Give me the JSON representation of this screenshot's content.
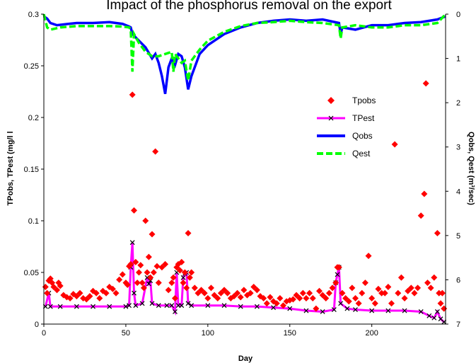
{
  "chart_data": {
    "type": "line",
    "title": "Impact of the phosphorus removal on the export",
    "xlabel": "Day",
    "ylabel_left": "TPobs, TPest (mg/l l",
    "ylabel_right": "Qobs, Qest (m³/sec)",
    "xlim": [
      0,
      245
    ],
    "ylim_left": [
      0,
      0.3
    ],
    "ylim_right_inverted": [
      0,
      7
    ],
    "x_ticks": [
      "0",
      "50",
      "100",
      "150",
      "200"
    ],
    "y_left_ticks": [
      "0",
      "0.05",
      "0.1",
      "0.15",
      "0.2",
      "0.25",
      "0.3"
    ],
    "y_right_ticks": [
      "0",
      "1",
      "2",
      "3",
      "4",
      "5",
      "6",
      "7"
    ],
    "legend_position": "upper-right",
    "colors": {
      "Tpobs": "#ff0000",
      "TPest": "#ff00ff",
      "Qobs": "#0000ff",
      "Qest": "#00ff00",
      "marker": "#000000"
    },
    "series": [
      {
        "name": "Tpobs",
        "axis": "left",
        "style": "diamond-markers",
        "points": [
          [
            1,
            0.036
          ],
          [
            2,
            0.03
          ],
          [
            3,
            0.042
          ],
          [
            4,
            0.044
          ],
          [
            5,
            0.04
          ],
          [
            6,
            0.036
          ],
          [
            8,
            0.033
          ],
          [
            9,
            0.04
          ],
          [
            10,
            0.037
          ],
          [
            12,
            0.028
          ],
          [
            14,
            0.026
          ],
          [
            16,
            0.025
          ],
          [
            18,
            0.029
          ],
          [
            20,
            0.027
          ],
          [
            22,
            0.03
          ],
          [
            24,
            0.025
          ],
          [
            26,
            0.024
          ],
          [
            28,
            0.027
          ],
          [
            30,
            0.032
          ],
          [
            32,
            0.03
          ],
          [
            34,
            0.025
          ],
          [
            36,
            0.032
          ],
          [
            38,
            0.03
          ],
          [
            40,
            0.036
          ],
          [
            42,
            0.034
          ],
          [
            44,
            0.03
          ],
          [
            46,
            0.043
          ],
          [
            48,
            0.048
          ],
          [
            50,
            0.04
          ],
          [
            51,
            0.038
          ],
          [
            52,
            0.056
          ],
          [
            53,
            0.058
          ],
          [
            54,
            0.222
          ],
          [
            55,
            0.11
          ],
          [
            56,
            0.06
          ],
          [
            57,
            0.04
          ],
          [
            58,
            0.05
          ],
          [
            59,
            0.057
          ],
          [
            60,
            0.04
          ],
          [
            61,
            0.035
          ],
          [
            62,
            0.1
          ],
          [
            63,
            0.05
          ],
          [
            64,
            0.065
          ],
          [
            65,
            0.045
          ],
          [
            66,
            0.087
          ],
          [
            67,
            0.05
          ],
          [
            68,
            0.167
          ],
          [
            69,
            0.056
          ],
          [
            70,
            0.04
          ],
          [
            72,
            0.055
          ],
          [
            74,
            0.058
          ],
          [
            76,
            0.033
          ],
          [
            78,
            0.04
          ],
          [
            79,
            0.045
          ],
          [
            80,
            0.025
          ],
          [
            81,
            0.055
          ],
          [
            82,
            0.058
          ],
          [
            83,
            0.052
          ],
          [
            84,
            0.06
          ],
          [
            85,
            0.04
          ],
          [
            86,
            0.05
          ],
          [
            87,
            0.035
          ],
          [
            88,
            0.088
          ],
          [
            89,
            0.045
          ],
          [
            90,
            0.05
          ],
          [
            92,
            0.035
          ],
          [
            94,
            0.03
          ],
          [
            96,
            0.033
          ],
          [
            98,
            0.03
          ],
          [
            100,
            0.025
          ],
          [
            102,
            0.035
          ],
          [
            104,
            0.028
          ],
          [
            106,
            0.025
          ],
          [
            108,
            0.03
          ],
          [
            110,
            0.033
          ],
          [
            112,
            0.03
          ],
          [
            114,
            0.025
          ],
          [
            116,
            0.027
          ],
          [
            118,
            0.03
          ],
          [
            120,
            0.026
          ],
          [
            122,
            0.033
          ],
          [
            124,
            0.028
          ],
          [
            126,
            0.03
          ],
          [
            128,
            0.036
          ],
          [
            130,
            0.033
          ],
          [
            132,
            0.027
          ],
          [
            134,
            0.025
          ],
          [
            136,
            0.02
          ],
          [
            138,
            0.026
          ],
          [
            140,
            0.022
          ],
          [
            142,
            0.02
          ],
          [
            144,
            0.025
          ],
          [
            146,
            0.018
          ],
          [
            148,
            0.022
          ],
          [
            150,
            0.023
          ],
          [
            152,
            0.024
          ],
          [
            154,
            0.028
          ],
          [
            156,
            0.025
          ],
          [
            158,
            0.03
          ],
          [
            160,
            0.025
          ],
          [
            162,
            0.03
          ],
          [
            164,
            0.025
          ],
          [
            166,
            0.015
          ],
          [
            168,
            0.032
          ],
          [
            170,
            0.028
          ],
          [
            172,
            0.025
          ],
          [
            174,
            0.03
          ],
          [
            176,
            0.035
          ],
          [
            178,
            0.04
          ],
          [
            179,
            0.055
          ],
          [
            180,
            0.055
          ],
          [
            182,
            0.03
          ],
          [
            184,
            0.025
          ],
          [
            186,
            0.022
          ],
          [
            188,
            0.035
          ],
          [
            190,
            0.025
          ],
          [
            192,
            0.02
          ],
          [
            194,
            0.03
          ],
          [
            196,
            0.04
          ],
          [
            198,
            0.066
          ],
          [
            200,
            0.025
          ],
          [
            202,
            0.02
          ],
          [
            204,
            0.034
          ],
          [
            206,
            0.03
          ],
          [
            208,
            0.03
          ],
          [
            210,
            0.036
          ],
          [
            212,
            0.02
          ],
          [
            214,
            0.174
          ],
          [
            216,
            0.03
          ],
          [
            218,
            0.045
          ],
          [
            220,
            0.025
          ],
          [
            222,
            0.032
          ],
          [
            224,
            0.035
          ],
          [
            226,
            0.03
          ],
          [
            228,
            0.035
          ],
          [
            230,
            0.105
          ],
          [
            232,
            0.126
          ],
          [
            233,
            0.233
          ],
          [
            234,
            0.04
          ],
          [
            236,
            0.035
          ],
          [
            238,
            0.045
          ],
          [
            240,
            0.088
          ],
          [
            241,
            0.03
          ],
          [
            242,
            0.02
          ],
          [
            243,
            0.03
          ],
          [
            244,
            0.015
          ]
        ]
      },
      {
        "name": "TPest",
        "axis": "left",
        "style": "line-with-x-markers",
        "points": [
          [
            1,
            0.017
          ],
          [
            3,
            0.03
          ],
          [
            4,
            0.017
          ],
          [
            10,
            0.017
          ],
          [
            20,
            0.017
          ],
          [
            30,
            0.017
          ],
          [
            40,
            0.017
          ],
          [
            50,
            0.017
          ],
          [
            52,
            0.018
          ],
          [
            53,
            0.055
          ],
          [
            54,
            0.079
          ],
          [
            55,
            0.03
          ],
          [
            56,
            0.018
          ],
          [
            60,
            0.02
          ],
          [
            63,
            0.045
          ],
          [
            64,
            0.039
          ],
          [
            65,
            0.042
          ],
          [
            66,
            0.02
          ],
          [
            70,
            0.018
          ],
          [
            75,
            0.018
          ],
          [
            78,
            0.018
          ],
          [
            80,
            0.012
          ],
          [
            81,
            0.05
          ],
          [
            82,
            0.018
          ],
          [
            84,
            0.018
          ],
          [
            85,
            0.045
          ],
          [
            86,
            0.049
          ],
          [
            87,
            0.05
          ],
          [
            88,
            0.02
          ],
          [
            90,
            0.018
          ],
          [
            100,
            0.018
          ],
          [
            110,
            0.018
          ],
          [
            120,
            0.017
          ],
          [
            130,
            0.017
          ],
          [
            140,
            0.016
          ],
          [
            150,
            0.015
          ],
          [
            160,
            0.013
          ],
          [
            170,
            0.012
          ],
          [
            177,
            0.014
          ],
          [
            178,
            0.04
          ],
          [
            179,
            0.048
          ],
          [
            180,
            0.055
          ],
          [
            181,
            0.02
          ],
          [
            185,
            0.015
          ],
          [
            190,
            0.014
          ],
          [
            200,
            0.013
          ],
          [
            210,
            0.013
          ],
          [
            220,
            0.013
          ],
          [
            230,
            0.012
          ],
          [
            235,
            0.008
          ],
          [
            238,
            0.006
          ],
          [
            240,
            0.012
          ],
          [
            242,
            0.005
          ],
          [
            244,
            0.002
          ]
        ]
      },
      {
        "name": "Qobs",
        "axis": "right",
        "style": "line",
        "points": [
          [
            0,
            0.05
          ],
          [
            2,
            0.1
          ],
          [
            4,
            0.2
          ],
          [
            8,
            0.25
          ],
          [
            15,
            0.22
          ],
          [
            20,
            0.2
          ],
          [
            30,
            0.2
          ],
          [
            40,
            0.18
          ],
          [
            48,
            0.22
          ],
          [
            52,
            0.28
          ],
          [
            53,
            0.3
          ],
          [
            54,
            0.45
          ],
          [
            58,
            0.6
          ],
          [
            62,
            0.75
          ],
          [
            66,
            1.0
          ],
          [
            68,
            0.9
          ],
          [
            70,
            1.1
          ],
          [
            72,
            1.4
          ],
          [
            74,
            1.8
          ],
          [
            76,
            1.2
          ],
          [
            78,
            1.0
          ],
          [
            80,
            1.15
          ],
          [
            82,
            0.9
          ],
          [
            84,
            0.95
          ],
          [
            86,
            1.2
          ],
          [
            88,
            1.7
          ],
          [
            90,
            1.4
          ],
          [
            95,
            0.9
          ],
          [
            100,
            0.7
          ],
          [
            110,
            0.45
          ],
          [
            120,
            0.3
          ],
          [
            130,
            0.2
          ],
          [
            140,
            0.15
          ],
          [
            150,
            0.12
          ],
          [
            160,
            0.15
          ],
          [
            170,
            0.12
          ],
          [
            180,
            0.2
          ],
          [
            181,
            0.45
          ],
          [
            182,
            0.3
          ],
          [
            190,
            0.35
          ],
          [
            200,
            0.25
          ],
          [
            210,
            0.25
          ],
          [
            220,
            0.2
          ],
          [
            230,
            0.18
          ],
          [
            240,
            0.12
          ],
          [
            245,
            0.05
          ]
        ]
      },
      {
        "name": "Qest",
        "axis": "right",
        "style": "dashed-line",
        "points": [
          [
            0,
            0.0
          ],
          [
            2,
            0.3
          ],
          [
            4,
            0.35
          ],
          [
            10,
            0.3
          ],
          [
            20,
            0.27
          ],
          [
            30,
            0.27
          ],
          [
            40,
            0.27
          ],
          [
            48,
            0.28
          ],
          [
            52,
            0.3
          ],
          [
            53,
            0.35
          ],
          [
            54,
            1.3
          ],
          [
            55,
            0.45
          ],
          [
            58,
            0.65
          ],
          [
            62,
            0.85
          ],
          [
            66,
            0.95
          ],
          [
            70,
            0.95
          ],
          [
            74,
            0.9
          ],
          [
            78,
            0.85
          ],
          [
            79,
            1.3
          ],
          [
            80,
            0.9
          ],
          [
            84,
            1.1
          ],
          [
            86,
            1.05
          ],
          [
            88,
            1.5
          ],
          [
            90,
            1.05
          ],
          [
            95,
            0.8
          ],
          [
            100,
            0.6
          ],
          [
            110,
            0.4
          ],
          [
            120,
            0.27
          ],
          [
            130,
            0.2
          ],
          [
            140,
            0.18
          ],
          [
            150,
            0.15
          ],
          [
            160,
            0.18
          ],
          [
            170,
            0.2
          ],
          [
            180,
            0.25
          ],
          [
            181,
            0.55
          ],
          [
            182,
            0.3
          ],
          [
            190,
            0.25
          ],
          [
            200,
            0.3
          ],
          [
            210,
            0.3
          ],
          [
            220,
            0.25
          ],
          [
            230,
            0.25
          ],
          [
            240,
            0.2
          ],
          [
            245,
            0.0
          ]
        ]
      }
    ]
  }
}
